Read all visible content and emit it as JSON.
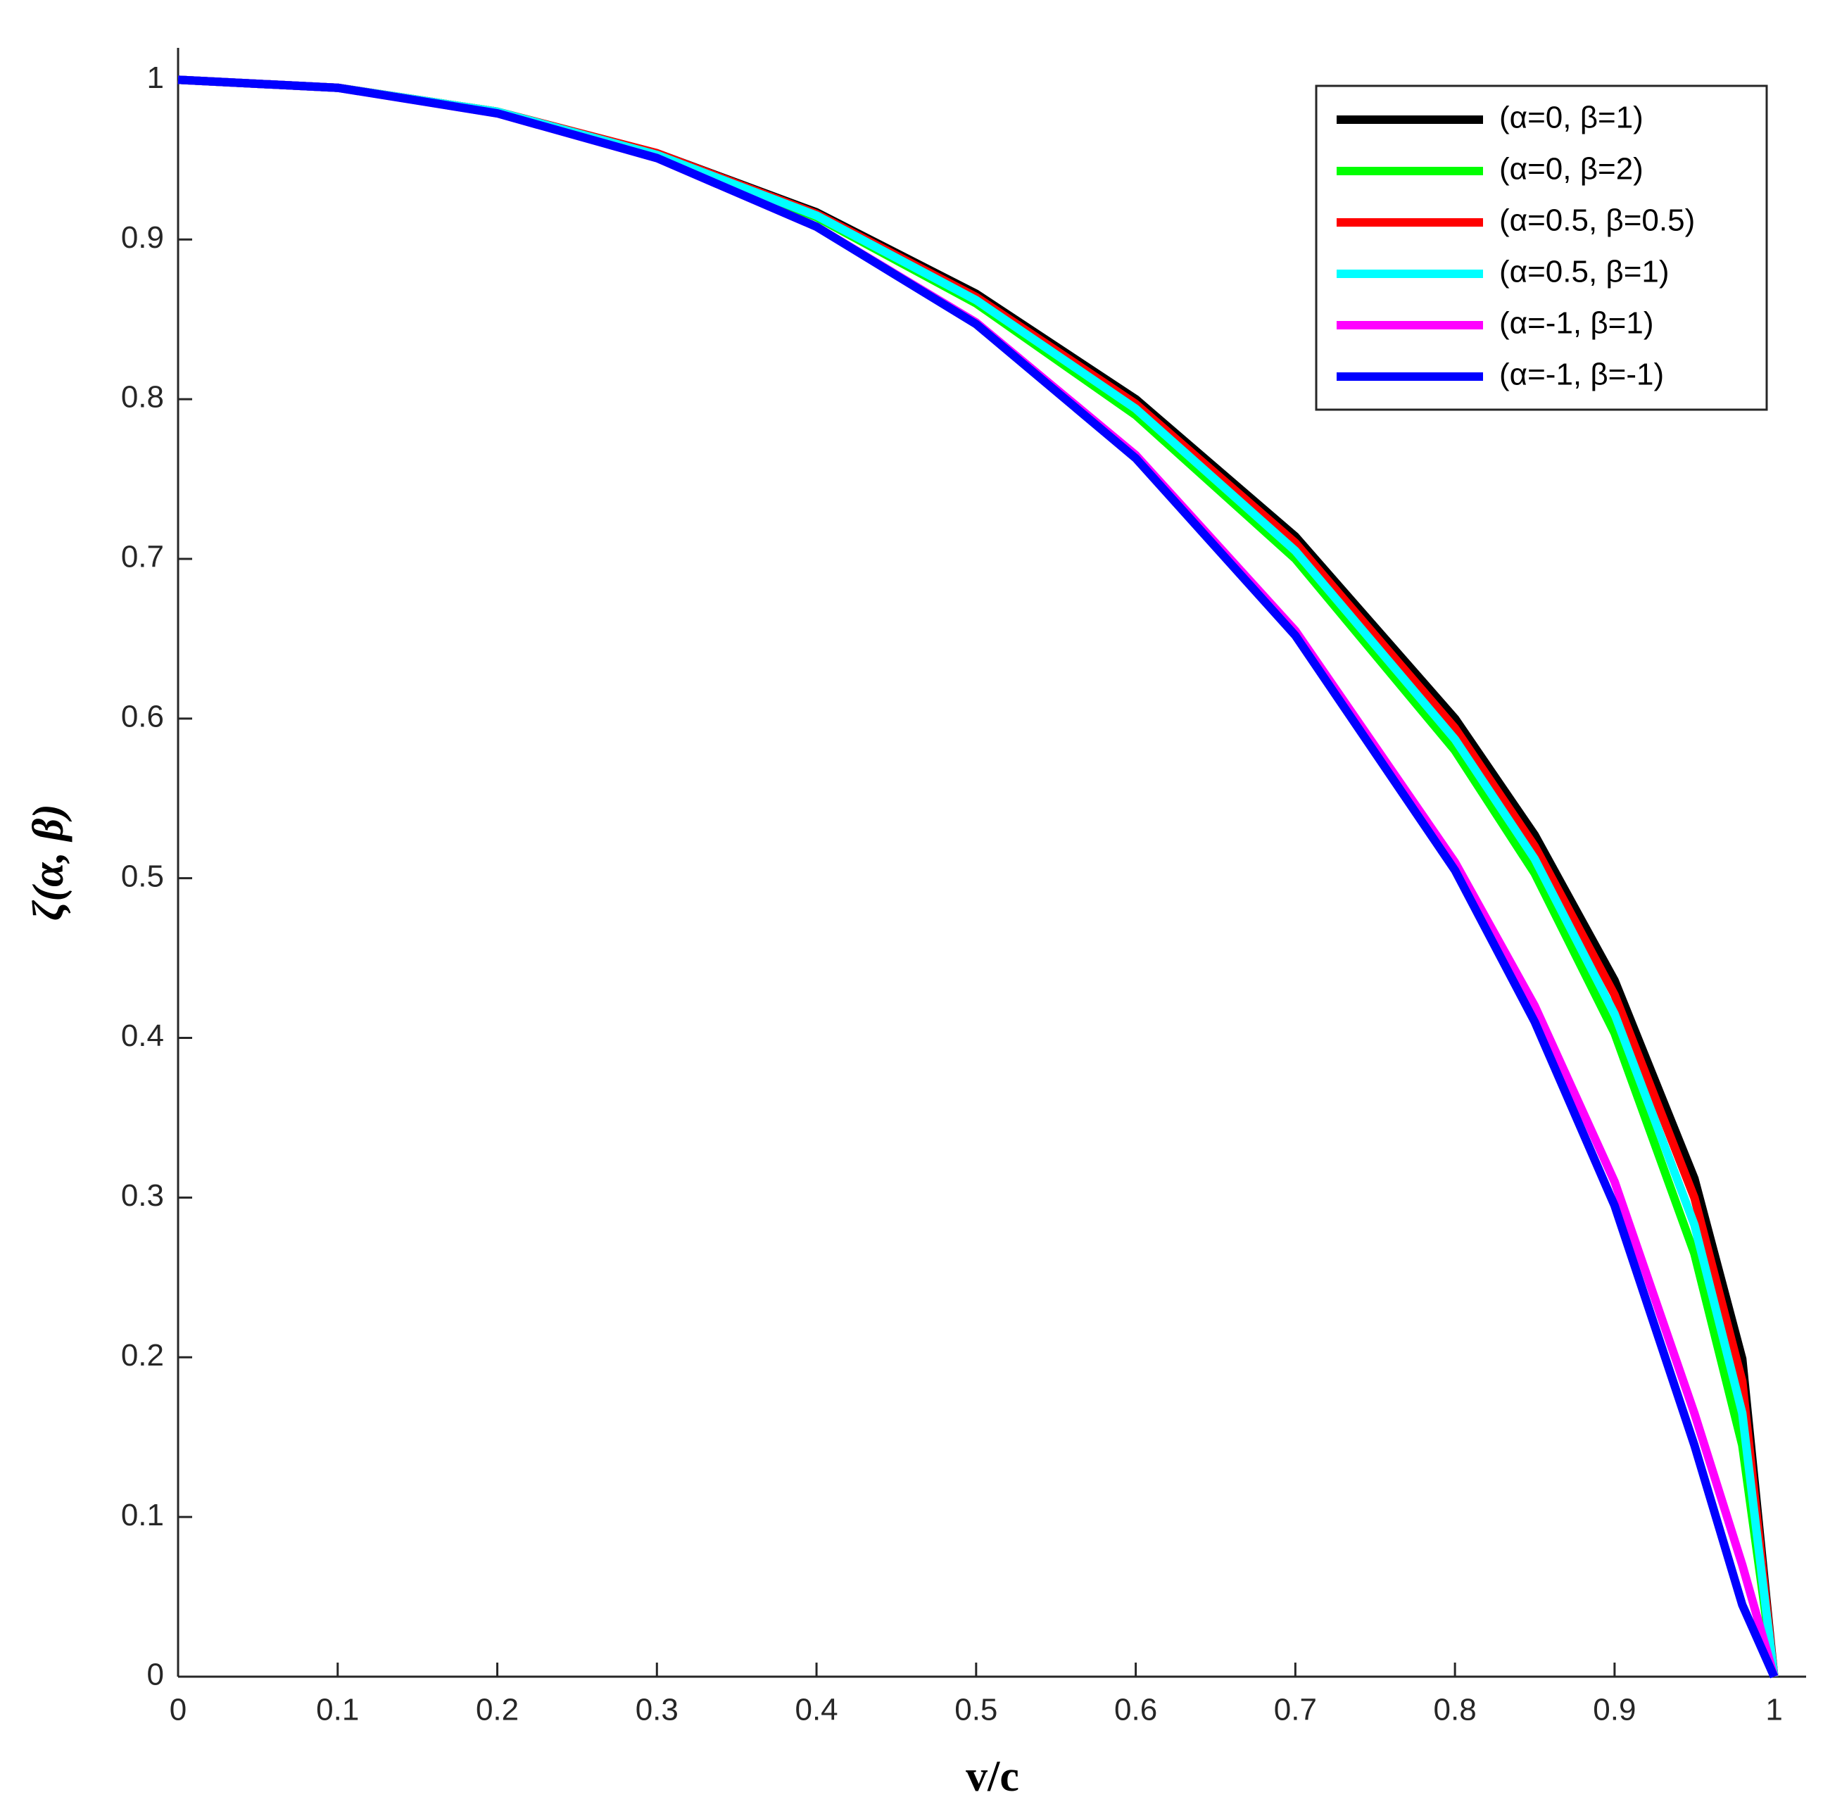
{
  "chart_data": {
    "type": "line",
    "x_label": "v/c",
    "y_label": "ζ(α, β)",
    "x": [
      0,
      0.1,
      0.2,
      0.3,
      0.4,
      0.5,
      0.6,
      0.7,
      0.8,
      0.85,
      0.9,
      0.95,
      0.98,
      1
    ],
    "series": [
      {
        "name": "(α=0, β=1)",
        "color": "#000000",
        "values": [
          1,
          0.995,
          0.98,
          0.954,
          0.917,
          0.866,
          0.8,
          0.714,
          0.6,
          0.527,
          0.436,
          0.312,
          0.199,
          0
        ]
      },
      {
        "name": "(α=0, β=2)",
        "color": "#00ff00",
        "values": [
          1,
          0.995,
          0.98,
          0.953,
          0.914,
          0.86,
          0.79,
          0.7,
          0.58,
          0.503,
          0.403,
          0.265,
          0.145,
          0
        ]
      },
      {
        "name": "(α=0.5, β=0.5)",
        "color": "#ff0000",
        "values": [
          1,
          0.995,
          0.98,
          0.954,
          0.916,
          0.864,
          0.797,
          0.71,
          0.594,
          0.52,
          0.427,
          0.3,
          0.185,
          0
        ]
      },
      {
        "name": "(α=0.5, β=1)",
        "color": "#00ffff",
        "values": [
          1,
          0.995,
          0.98,
          0.953,
          0.915,
          0.862,
          0.794,
          0.705,
          0.587,
          0.512,
          0.415,
          0.283,
          0.165,
          0
        ]
      },
      {
        "name": "(α=-1, β=1)",
        "color": "#ff00ff",
        "values": [
          1,
          0.995,
          0.979,
          0.951,
          0.908,
          0.848,
          0.765,
          0.655,
          0.51,
          0.42,
          0.31,
          0.165,
          0.07,
          0
        ]
      },
      {
        "name": "(α=-1, β=-1)",
        "color": "#0000ff",
        "values": [
          1,
          0.995,
          0.979,
          0.951,
          0.908,
          0.847,
          0.763,
          0.652,
          0.505,
          0.41,
          0.295,
          0.145,
          0.045,
          0
        ]
      }
    ],
    "xlim": [
      0,
      1.02
    ],
    "ylim": [
      0,
      1.02
    ],
    "xticks": [
      0,
      0.1,
      0.2,
      0.3,
      0.4,
      0.5,
      0.6,
      0.7,
      0.8,
      0.9,
      1
    ],
    "yticks": [
      0,
      0.1,
      0.2,
      0.3,
      0.4,
      0.5,
      0.6,
      0.7,
      0.8,
      0.9,
      1
    ],
    "legend": "upper-right"
  }
}
